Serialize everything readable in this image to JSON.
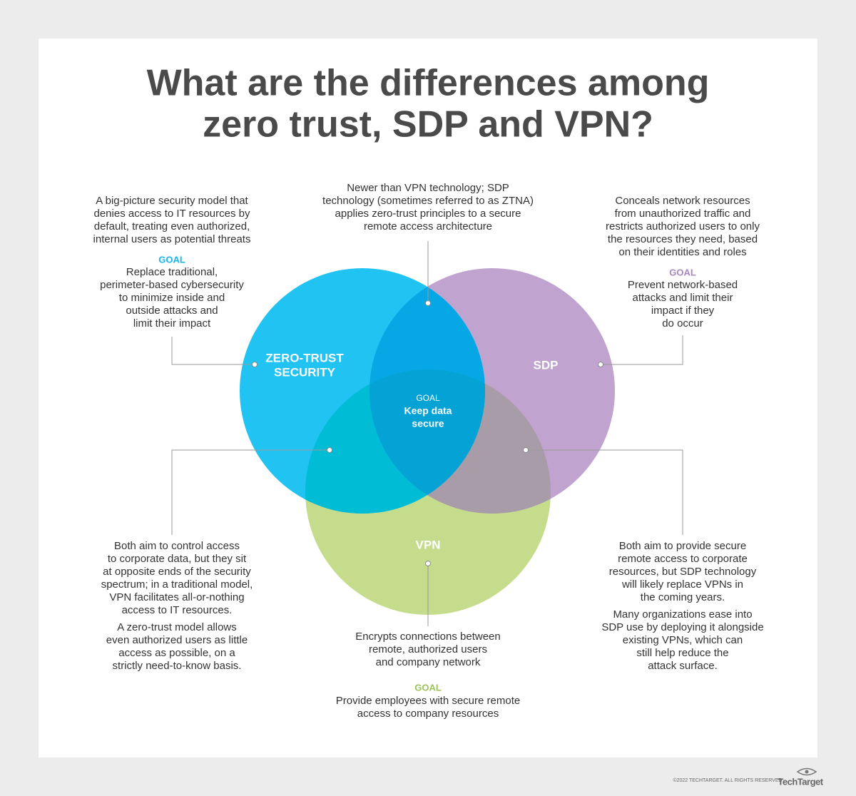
{
  "title": [
    "What are the differences among",
    "zero trust, SDP and VPN?"
  ],
  "circles": {
    "zero_trust": {
      "label": [
        "ZERO-TRUST",
        "SECURITY"
      ]
    },
    "sdp": {
      "label": [
        "SDP"
      ]
    },
    "vpn": {
      "label": [
        "VPN"
      ]
    }
  },
  "center": {
    "goal_label": "GOAL",
    "goal": [
      "Keep data",
      "secure"
    ]
  },
  "zero_trust": {
    "description": [
      "A big-picture security model that",
      "denies access to IT resources by",
      "default, treating even authorized,",
      "internal users as potential threats"
    ],
    "goal_label": "GOAL",
    "goal": [
      "Replace traditional,",
      "perimeter-based cybersecurity",
      "to minimize inside and",
      "outside attacks and",
      "limit their impact"
    ]
  },
  "zero_trust_sdp": {
    "description": [
      "Newer than VPN technology; SDP",
      "technology (sometimes referred to as ZTNA)",
      "applies zero-trust principles to a secure",
      "remote access architecture"
    ]
  },
  "sdp": {
    "description": [
      "Conceals network resources",
      "from unauthorized traffic and",
      "restricts authorized users to only",
      "the resources they need, based",
      "on their identities and roles"
    ],
    "goal_label": "GOAL",
    "goal": [
      "Prevent network-based",
      "attacks and limit their",
      "impact if they",
      "do occur"
    ]
  },
  "zero_trust_vpn": {
    "description": [
      "Both aim to control access",
      "to corporate data, but they sit",
      "at opposite ends of the security",
      "spectrum; in a traditional model,",
      "VPN facilitates all-or-nothing",
      "access to IT resources."
    ],
    "note": [
      "A zero-trust model allows",
      "even authorized users as little",
      "access as possible, on a",
      "strictly need-to-know basis."
    ]
  },
  "vpn": {
    "description": [
      "Encrypts connections between",
      "remote, authorized users",
      "and company network"
    ],
    "goal_label": "GOAL",
    "goal": [
      "Provide employees with secure remote",
      "access to company resources"
    ]
  },
  "sdp_vpn": {
    "description": [
      "Both aim to provide secure",
      "remote access to corporate",
      "resources, but SDP technology",
      "will likely replace VPNs in",
      "the coming years."
    ],
    "note": [
      "Many organizations ease into",
      "SDP use by deploying it alongside",
      "existing VPNs, which can",
      "still help reduce the",
      "attack surface."
    ]
  },
  "footer": {
    "copyright": "©2022 TECHTARGET. ALL RIGHTS RESERVED",
    "logo": "TechTarget"
  }
}
